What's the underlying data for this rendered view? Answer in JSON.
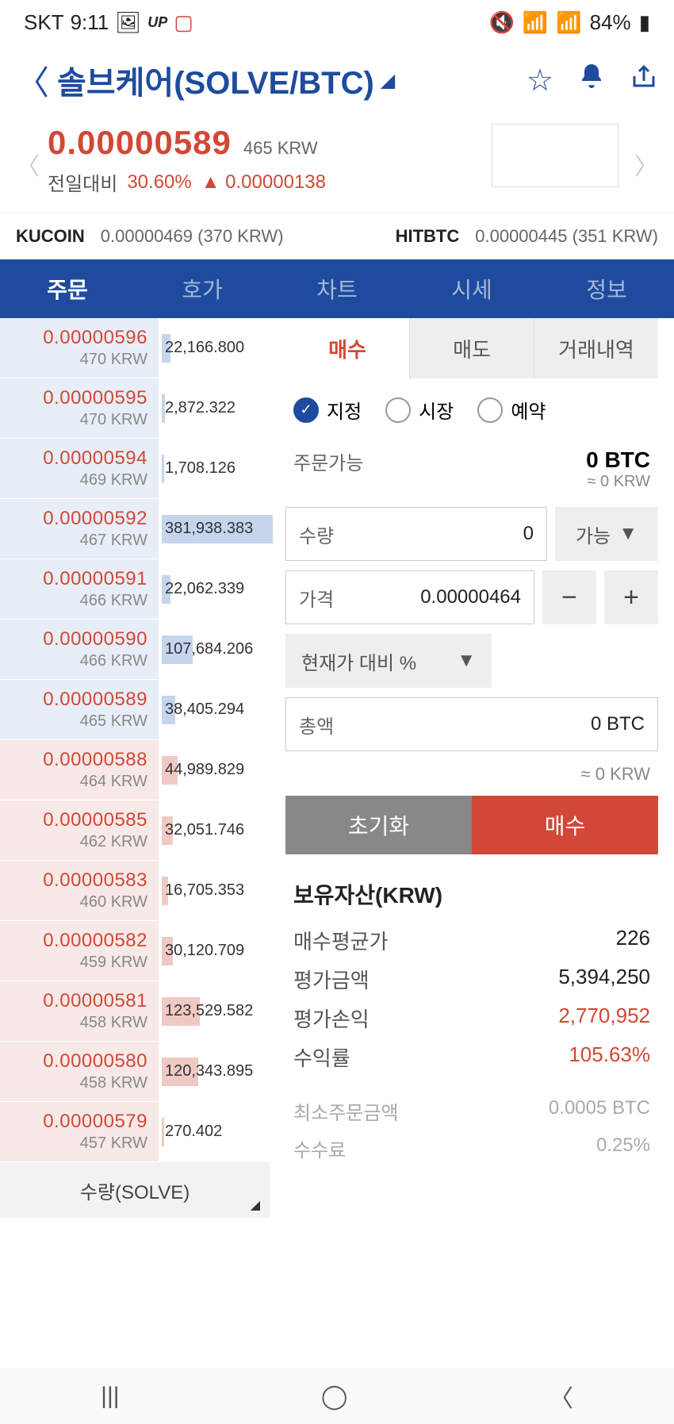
{
  "statusBar": {
    "carrier": "SKT",
    "time": "9:11",
    "battery": "84%"
  },
  "header": {
    "title": "솔브케어(SOLVE/BTC)"
  },
  "price": {
    "value": "0.00000589",
    "krw": "465 KRW",
    "changeLabel": "전일대비",
    "changePct": "30.60%",
    "changeDiff": "0.00000138"
  },
  "exchanges": [
    {
      "name": "KUCOIN",
      "value": "0.00000469 (370 KRW)"
    },
    {
      "name": "HITBTC",
      "value": "0.00000445 (351 KRW)"
    }
  ],
  "mainTabs": [
    "주문",
    "호가",
    "차트",
    "시세",
    "정보"
  ],
  "orderbook": {
    "asks": [
      {
        "price": "0.00000596",
        "krw": "470 KRW",
        "qty": "22,166.800",
        "bar": 8
      },
      {
        "price": "0.00000595",
        "krw": "470 KRW",
        "qty": "2,872.322",
        "bar": 3
      },
      {
        "price": "0.00000594",
        "krw": "469 KRW",
        "qty": "1,708.126",
        "bar": 2
      },
      {
        "price": "0.00000592",
        "krw": "467 KRW",
        "qty": "381,938.383",
        "bar": 100
      },
      {
        "price": "0.00000591",
        "krw": "466 KRW",
        "qty": "22,062.339",
        "bar": 8
      },
      {
        "price": "0.00000590",
        "krw": "466 KRW",
        "qty": "107,684.206",
        "bar": 28
      },
      {
        "price": "0.00000589",
        "krw": "465 KRW",
        "qty": "38,405.294",
        "bar": 12
      }
    ],
    "bids": [
      {
        "price": "0.00000588",
        "krw": "464 KRW",
        "qty": "44,989.829",
        "bar": 14
      },
      {
        "price": "0.00000585",
        "krw": "462 KRW",
        "qty": "32,051.746",
        "bar": 10
      },
      {
        "price": "0.00000583",
        "krw": "460 KRW",
        "qty": "16,705.353",
        "bar": 6
      },
      {
        "price": "0.00000582",
        "krw": "459 KRW",
        "qty": "30,120.709",
        "bar": 10
      },
      {
        "price": "0.00000581",
        "krw": "458 KRW",
        "qty": "123,529.582",
        "bar": 34
      },
      {
        "price": "0.00000580",
        "krw": "458 KRW",
        "qty": "120,343.895",
        "bar": 33
      },
      {
        "price": "0.00000579",
        "krw": "457 KRW",
        "qty": "270.402",
        "bar": 2
      }
    ],
    "footer": "수량(SOLVE)"
  },
  "subTabs": [
    "매수",
    "매도",
    "거래내역"
  ],
  "orderTypes": [
    "지정",
    "시장",
    "예약"
  ],
  "orderForm": {
    "availLabel": "주문가능",
    "availValue": "0 BTC",
    "availSub": "≈ 0 KRW",
    "qtyLabel": "수량",
    "qtyValue": "0",
    "qtyBtn": "가능",
    "priceLabel": "가격",
    "priceValue": "0.00000464",
    "pctLabel": "현재가 대비 %",
    "totalLabel": "총액",
    "totalValue": "0 BTC",
    "approx": "≈ 0 KRW",
    "resetBtn": "초기화",
    "buyBtn": "매수"
  },
  "holdings": {
    "title": "보유자산(KRW)",
    "rows": [
      {
        "k": "매수평균가",
        "v": "226",
        "red": false
      },
      {
        "k": "평가금액",
        "v": "5,394,250",
        "red": false
      },
      {
        "k": "평가손익",
        "v": "2,770,952",
        "red": true
      },
      {
        "k": "수익률",
        "v": "105.63%",
        "red": true
      }
    ],
    "faded": [
      {
        "k": "최소주문금액",
        "v": "0.0005 BTC"
      },
      {
        "k": "수수료",
        "v": "0.25%"
      }
    ]
  }
}
